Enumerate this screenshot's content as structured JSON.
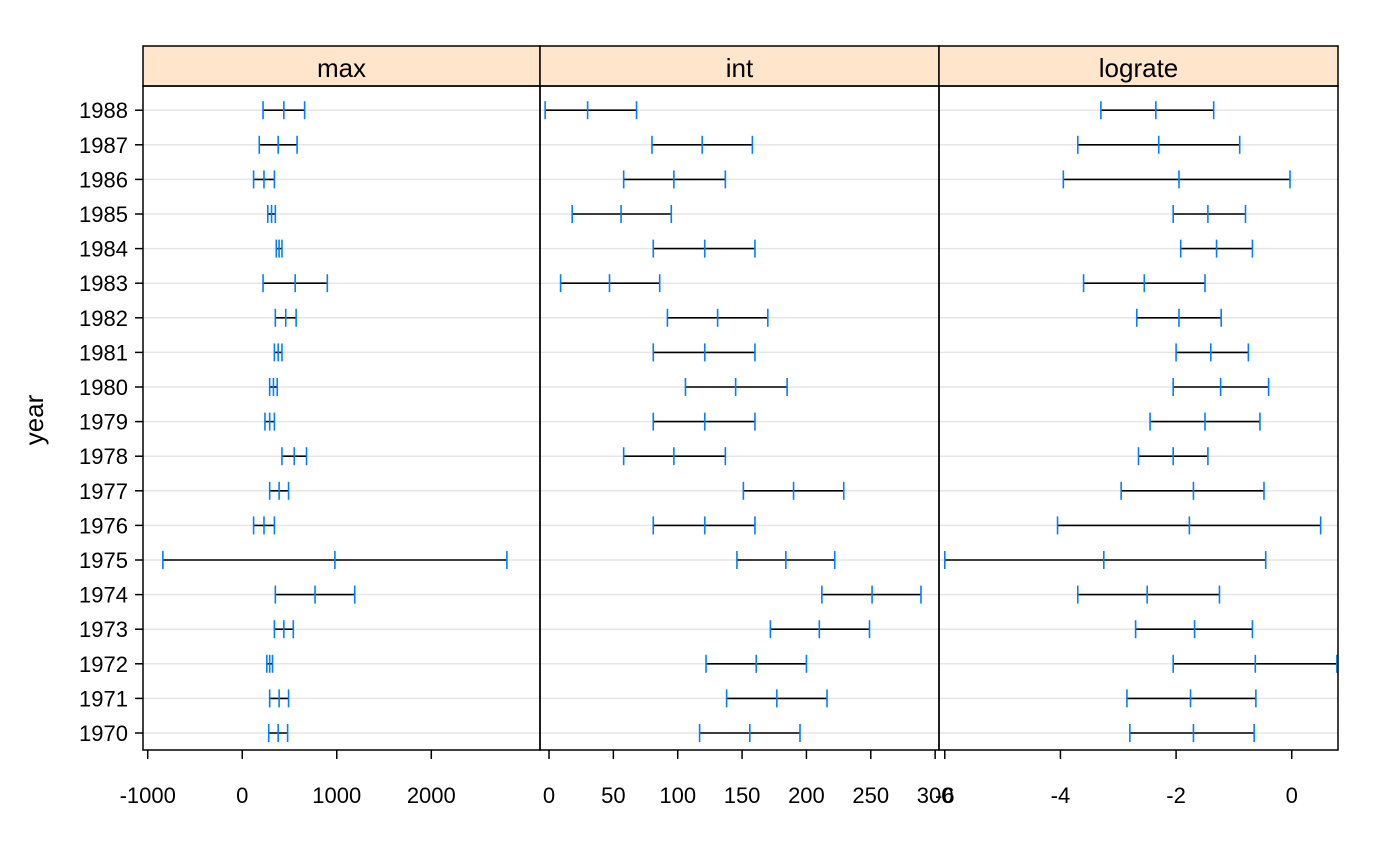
{
  "chart_data": {
    "type": "interval-dotplot",
    "ylabel": "year",
    "categories": [
      "1970",
      "1971",
      "1972",
      "1973",
      "1974",
      "1975",
      "1976",
      "1977",
      "1978",
      "1979",
      "1980",
      "1981",
      "1982",
      "1983",
      "1984",
      "1985",
      "1986",
      "1987",
      "1988"
    ],
    "grid": true,
    "colors": {
      "strip_fill": "#ffe5cc",
      "marker": "#0080ff",
      "interval_line": "#000000",
      "grid": "#e6e6e6",
      "frame": "#000000"
    },
    "panels": [
      {
        "name": "max",
        "xlim": [
          -1050,
          3150
        ],
        "x_ticks": [
          -1000,
          0,
          1000,
          2000
        ],
        "x_tick_labels": [
          "-1000",
          "0",
          "1000",
          "2000"
        ],
        "intervals": [
          [
            280,
            380,
            480
          ],
          [
            290,
            390,
            490
          ],
          [
            260,
            290,
            320
          ],
          [
            340,
            440,
            540
          ],
          [
            350,
            770,
            1190
          ],
          [
            -840,
            980,
            2800
          ],
          [
            120,
            230,
            340
          ],
          [
            290,
            390,
            490
          ],
          [
            420,
            550,
            680
          ],
          [
            240,
            290,
            340
          ],
          [
            290,
            330,
            370
          ],
          [
            340,
            380,
            420
          ],
          [
            350,
            460,
            570
          ],
          [
            220,
            560,
            900
          ],
          [
            360,
            390,
            420
          ],
          [
            270,
            310,
            350
          ],
          [
            120,
            230,
            340
          ],
          [
            180,
            380,
            580
          ],
          [
            220,
            440,
            660
          ]
        ]
      },
      {
        "name": "int",
        "xlim": [
          -7,
          303
        ],
        "x_ticks": [
          0,
          50,
          100,
          150,
          200,
          250,
          300
        ],
        "x_tick_labels": [
          "0",
          "50",
          "100",
          "150",
          "200",
          "250",
          "300"
        ],
        "intervals": [
          [
            117,
            156,
            195
          ],
          [
            138,
            177,
            216
          ],
          [
            122,
            161,
            200
          ],
          [
            172,
            210,
            249
          ],
          [
            212,
            251,
            289
          ],
          [
            146,
            184,
            222
          ],
          [
            81,
            121,
            160
          ],
          [
            151,
            190,
            229
          ],
          [
            58,
            97,
            137
          ],
          [
            81,
            121,
            160
          ],
          [
            106,
            145,
            185
          ],
          [
            81,
            121,
            160
          ],
          [
            92,
            131,
            170
          ],
          [
            9,
            47,
            86
          ],
          [
            81,
            121,
            160
          ],
          [
            18,
            56,
            95
          ],
          [
            58,
            97,
            137
          ],
          [
            80,
            119,
            158
          ],
          [
            -3,
            30,
            68
          ]
        ]
      },
      {
        "name": "lograte",
        "xlim": [
          -6.1,
          0.8
        ],
        "x_ticks": [
          -6,
          -4,
          -2,
          0
        ],
        "x_tick_labels": [
          "-6",
          "-4",
          "-2",
          "0"
        ],
        "intervals": [
          [
            -2.8,
            -1.7,
            -0.65
          ],
          [
            -2.85,
            -1.75,
            -0.62
          ],
          [
            -2.05,
            -0.63,
            0.78
          ],
          [
            -2.7,
            -1.68,
            -0.68
          ],
          [
            -3.7,
            -2.5,
            -1.25
          ],
          [
            -6.0,
            -3.25,
            -0.45
          ],
          [
            -4.05,
            -1.77,
            0.5
          ],
          [
            -2.95,
            -1.7,
            -0.48
          ],
          [
            -2.65,
            -2.05,
            -1.45
          ],
          [
            -2.45,
            -1.5,
            -0.55
          ],
          [
            -2.05,
            -1.23,
            -0.4
          ],
          [
            -2.0,
            -1.4,
            -0.75
          ],
          [
            -2.68,
            -1.95,
            -1.22
          ],
          [
            -3.6,
            -2.55,
            -1.5
          ],
          [
            -1.92,
            -1.3,
            -0.68
          ],
          [
            -2.05,
            -1.45,
            -0.8
          ],
          [
            -3.95,
            -1.95,
            -0.03
          ],
          [
            -3.7,
            -2.3,
            -0.9
          ],
          [
            -3.3,
            -2.35,
            -1.35
          ]
        ]
      }
    ]
  }
}
